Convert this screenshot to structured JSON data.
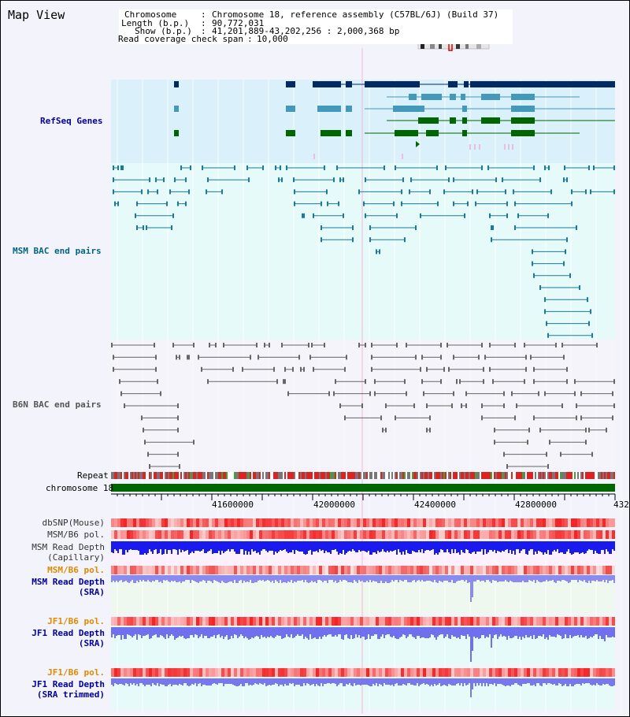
{
  "title": "Map View",
  "info": {
    "chromosome_key": "Chromosome",
    "chromosome_val": "Chromosome 18, reference assembly (C57BL/6J) (Build 37)",
    "length_key": "Length (b.p.)",
    "length_val": "90,772,031",
    "show_key": "Show (b.p.)",
    "show_val": "41,201,889-43,202,256 : 2,000,368 bp",
    "span_key": "Read coverage check span",
    "span_val": "10,000"
  },
  "tracks": {
    "refseq": "RefSeq Genes",
    "msm_bac": "MSM BAC end pairs",
    "b6n_bac": "B6N BAC end pairs",
    "repeat": "Repeat",
    "chromosome": "chromosome 18",
    "dbsnp": "dbSNP(Mouse)",
    "msm_b6_pol": "MSM/B6 pol.",
    "msm_depth_cap_1": "MSM Read Depth",
    "msm_depth_cap_2": "(Capillary)",
    "msm_b6_pol_2": "MSM/B6 pol.",
    "msm_depth_sra_1": "MSM Read Depth",
    "msm_depth_sra_2": "(SRA)",
    "jf1_b6_pol": "JF1/B6 pol.",
    "jf1_depth_sra_1": "JF1 Read Depth",
    "jf1_depth_sra_2": "(SRA)",
    "jf1_b6_pol_2": "JF1/B6 pol.",
    "jf1_depth_trim_1": "JF1 Read Depth",
    "jf1_depth_trim_2": "(SRA trimmed)"
  },
  "axis": {
    "ticks": [
      "41600000",
      "42000000",
      "42400000",
      "42800000",
      "432"
    ]
  },
  "colors": {
    "refseq_bg": "#daf0fa",
    "msm_bg": "#e6fafa",
    "b6n_bg": "#f4f4fa",
    "gene_navy": "#002a66",
    "gene_blue": "#4499bb",
    "gene_green": "#006600",
    "bac_teal": "#1a7a99",
    "bac_gray": "#666666",
    "chrom_green": "#006600",
    "depth_blue": "#1010dd",
    "depth_light": "#8a8af0",
    "label_navy": "#000099",
    "label_teal": "#006680",
    "label_gray": "#555555",
    "label_orange": "#e08a00"
  }
}
